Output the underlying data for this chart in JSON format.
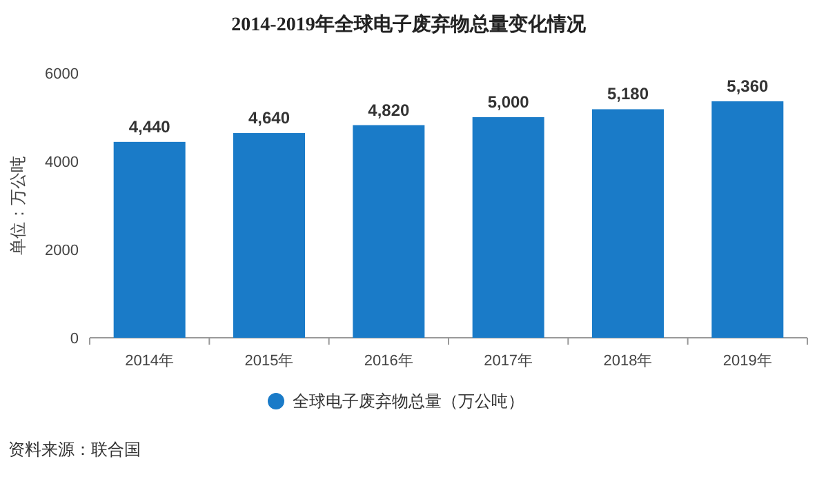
{
  "chart_data": {
    "type": "bar",
    "title": "2014-2019年全球电子废弃物总量变化情况",
    "ylabel": "单位：万公吨",
    "categories": [
      "2014年",
      "2015年",
      "2016年",
      "2017年",
      "2018年",
      "2019年"
    ],
    "series": [
      {
        "name": "全球电子废弃物总量（万公吨）",
        "color": "#1a7bc8",
        "values": [
          4440,
          4640,
          4820,
          5000,
          5180,
          5360
        ],
        "value_labels": [
          "4,440",
          "4,640",
          "4,820",
          "5,000",
          "5,180",
          "5,360"
        ]
      }
    ],
    "ylim": [
      0,
      6000
    ],
    "yticks": [
      0,
      2000,
      4000,
      6000
    ],
    "grid": false,
    "legend": "bottom",
    "marker": "circle",
    "annotations": [
      "资料来源：联合国"
    ]
  }
}
